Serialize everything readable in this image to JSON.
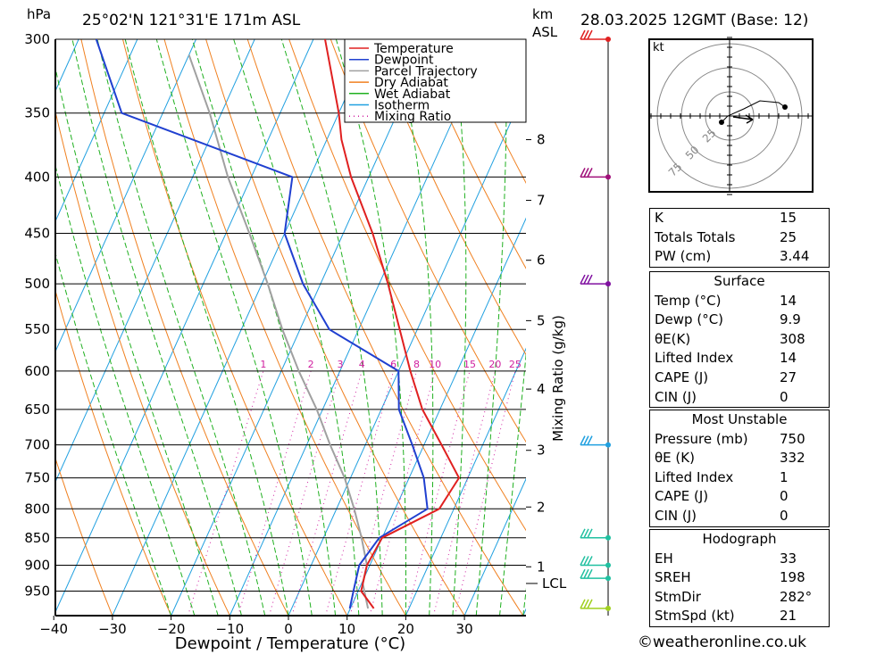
{
  "header": {
    "location": "25°02'N 121°31'E 171m ASL",
    "datetime": "28.03.2025 12GMT (Base: 12)",
    "p_unit": "hPa",
    "km_unit": "km",
    "asl_label": "ASL"
  },
  "footer": {
    "copyright": "©weatheronline.co.uk"
  },
  "chart_data": {
    "type": "line",
    "subtype": "skew-T log-P diagram",
    "xlabel": "Dewpoint / Temperature (°C)",
    "ylabel": "hPa",
    "mixing_ratio_axis_label": "Mixing Ratio (g/kg)",
    "x_ticks": [
      -40,
      -30,
      -20,
      -10,
      0,
      10,
      20,
      30
    ],
    "pressure_levels": [
      300,
      350,
      400,
      450,
      500,
      550,
      600,
      650,
      700,
      750,
      800,
      850,
      900,
      950
    ],
    "ylim": [
      1000,
      300
    ],
    "km_ticks": [
      {
        "km": 8,
        "p": 370
      },
      {
        "km": 7,
        "p": 420
      },
      {
        "km": 6,
        "p": 476
      },
      {
        "km": 5,
        "p": 540
      },
      {
        "km": 4,
        "p": 623
      },
      {
        "km": 3,
        "p": 708
      },
      {
        "km": 2,
        "p": 797
      },
      {
        "km": 1,
        "p": 903
      }
    ],
    "lcl": {
      "label": "LCL",
      "p": 935
    },
    "mixing_ratio_labels": [
      "1",
      "2",
      "3",
      "4",
      "6",
      "8",
      "10",
      "15",
      "20",
      "25"
    ],
    "legend": [
      {
        "name": "Temperature",
        "color": "#e02020",
        "style": "solid"
      },
      {
        "name": "Dewpoint",
        "color": "#2040d0",
        "style": "solid"
      },
      {
        "name": "Parcel Trajectory",
        "color": "#a0a0a0",
        "style": "solid"
      },
      {
        "name": "Dry Adiabat",
        "color": "#f08020",
        "style": "solid"
      },
      {
        "name": "Wet Adiabat",
        "color": "#20b020",
        "style": "solid"
      },
      {
        "name": "Isotherm",
        "color": "#20a0e0",
        "style": "solid"
      },
      {
        "name": "Mixing Ratio",
        "color": "#d020a0",
        "style": "dotted"
      }
    ],
    "series": [
      {
        "name": "Temperature",
        "points": [
          [
            985,
            14
          ],
          [
            950,
            10.5
          ],
          [
            900,
            9.5
          ],
          [
            850,
            10
          ],
          [
            800,
            17.5
          ],
          [
            750,
            18.5
          ],
          [
            700,
            13
          ],
          [
            650,
            7
          ],
          [
            600,
            2
          ],
          [
            550,
            -3
          ],
          [
            500,
            -8.5
          ],
          [
            450,
            -15
          ],
          [
            400,
            -23
          ],
          [
            370,
            -27.5
          ],
          [
            350,
            -30
          ],
          [
            300,
            -38
          ]
        ]
      },
      {
        "name": "Dewpoint",
        "points": [
          [
            985,
            9.9
          ],
          [
            950,
            9.2
          ],
          [
            900,
            8.2
          ],
          [
            850,
            9.5
          ],
          [
            800,
            15.5
          ],
          [
            750,
            12.5
          ],
          [
            700,
            8
          ],
          [
            650,
            3
          ],
          [
            600,
            0
          ],
          [
            550,
            -15
          ],
          [
            500,
            -23
          ],
          [
            450,
            -30
          ],
          [
            400,
            -33
          ],
          [
            350,
            -67
          ],
          [
            300,
            -77
          ]
        ]
      },
      {
        "name": "Parcel Trajectory",
        "points": [
          [
            985,
            13
          ],
          [
            935,
            10.2
          ],
          [
            900,
            9.5
          ],
          [
            850,
            6.5
          ],
          [
            800,
            3
          ],
          [
            750,
            -1
          ],
          [
            700,
            -6
          ],
          [
            650,
            -11
          ],
          [
            600,
            -17
          ],
          [
            550,
            -23
          ],
          [
            500,
            -29
          ],
          [
            450,
            -36
          ],
          [
            400,
            -44
          ],
          [
            350,
            -52
          ],
          [
            310,
            -60
          ]
        ]
      }
    ],
    "wind_profile": [
      {
        "p": 300,
        "flag_color": "#e02020",
        "dot": true
      },
      {
        "p": 400,
        "flag_color": "#a0107a",
        "dot": true
      },
      {
        "p": 500,
        "flag_color": "#8010a0",
        "dot": true
      },
      {
        "p": 700,
        "flag_color": "#20a0e0",
        "dot": true
      },
      {
        "p": 850,
        "flag_color": "#20c0a0",
        "dot": true
      },
      {
        "p": 900,
        "flag_color": "#20c0a0",
        "dot": true
      },
      {
        "p": 925,
        "flag_color": "#20c0a0",
        "dot": true
      },
      {
        "p": 985,
        "flag_color": "#a0d020",
        "dot": true
      }
    ],
    "hodograph": {
      "unit_label": "kt",
      "ring_labels": [
        "25",
        "50",
        "75"
      ]
    }
  },
  "indices": {
    "top": [
      {
        "k": "K",
        "v": "15"
      },
      {
        "k": "Totals Totals",
        "v": "25"
      },
      {
        "k": "PW (cm)",
        "v": "3.44"
      }
    ],
    "surface": {
      "title": "Surface",
      "rows": [
        {
          "k": "Temp (°C)",
          "v": "14"
        },
        {
          "k": "Dewp (°C)",
          "v": "9.9"
        },
        {
          "k": "θE(K)",
          "v": "308"
        },
        {
          "k": "Lifted Index",
          "v": "14"
        },
        {
          "k": "CAPE (J)",
          "v": "27"
        },
        {
          "k": "CIN (J)",
          "v": "0"
        }
      ]
    },
    "most_unstable": {
      "title": "Most Unstable",
      "rows": [
        {
          "k": "Pressure (mb)",
          "v": "750"
        },
        {
          "k": "θE (K)",
          "v": "332"
        },
        {
          "k": "Lifted Index",
          "v": "1"
        },
        {
          "k": "CAPE (J)",
          "v": "0"
        },
        {
          "k": "CIN (J)",
          "v": "0"
        }
      ]
    },
    "hodograph": {
      "title": "Hodograph",
      "rows": [
        {
          "k": "EH",
          "v": "33"
        },
        {
          "k": "SREH",
          "v": "198"
        },
        {
          "k": "StmDir",
          "v": "282°"
        },
        {
          "k": "StmSpd (kt)",
          "v": "21"
        }
      ]
    }
  }
}
